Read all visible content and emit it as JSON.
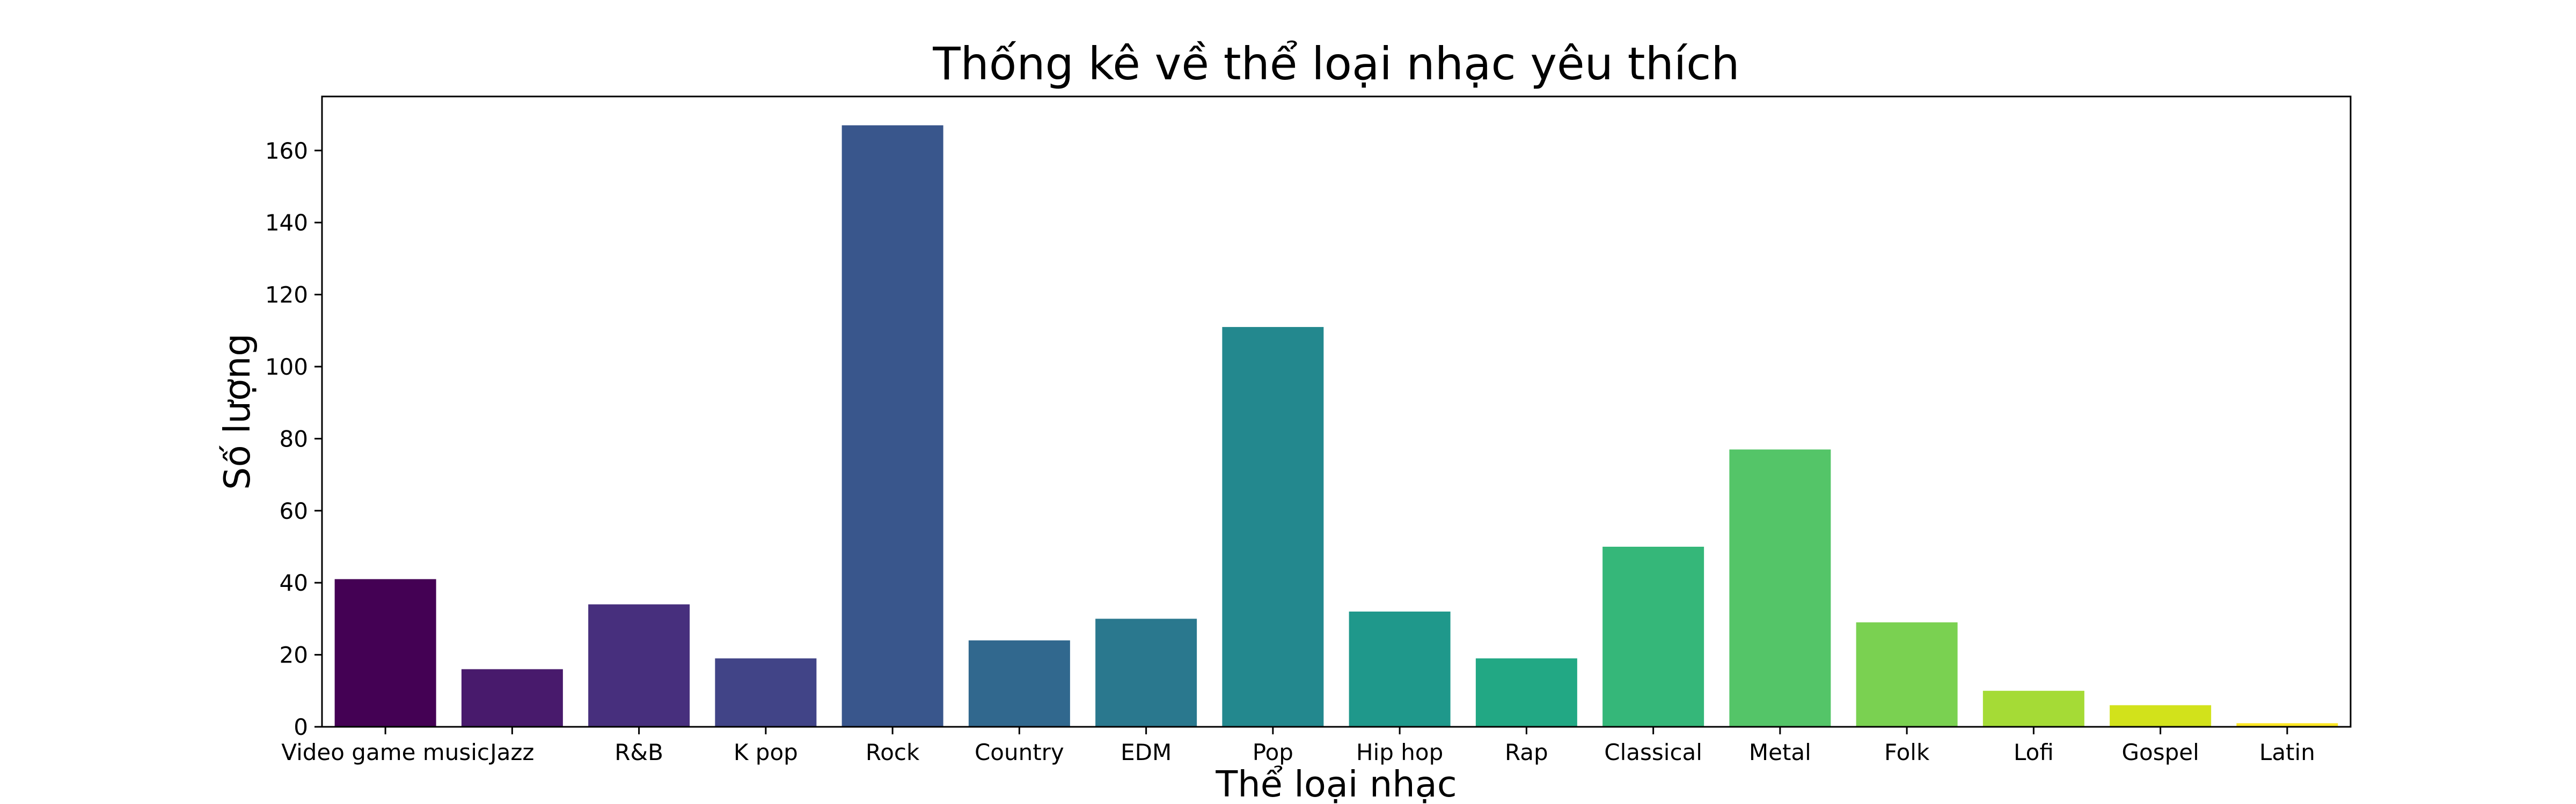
{
  "chart_data": {
    "type": "bar",
    "title": "Thống kê về thể loại nhạc yêu thích",
    "xlabel": "Thể loại nhạc",
    "ylabel": "Số lượng",
    "categories": [
      "Video game music",
      "Jazz",
      "R&B",
      "K pop",
      "Rock",
      "Country",
      "EDM",
      "Pop",
      "Hip hop",
      "Rap",
      "Classical",
      "Metal",
      "Folk",
      "Lofi",
      "Gospel",
      "Latin"
    ],
    "values": [
      41,
      16,
      34,
      19,
      167,
      24,
      30,
      111,
      32,
      19,
      50,
      77,
      29,
      10,
      6,
      1
    ],
    "colors": [
      "#440154",
      "#481a6c",
      "#472f7d",
      "#414487",
      "#39568c",
      "#31688e",
      "#2a788e",
      "#23888e",
      "#1f988b",
      "#22a884",
      "#35b779",
      "#54c568",
      "#7ad151",
      "#a5db36",
      "#d2e21b",
      "#fde725"
    ],
    "y_ticks": [
      0,
      20,
      40,
      60,
      80,
      100,
      120,
      140,
      160
    ],
    "ylim": [
      0,
      175
    ],
    "grid": false,
    "legend": "none"
  }
}
